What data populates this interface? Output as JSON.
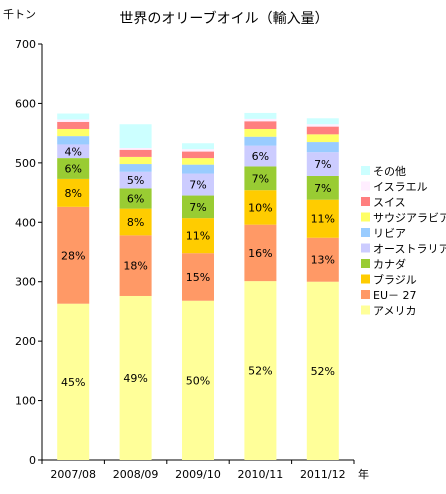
{
  "chart_data": {
    "type": "bar",
    "stacked": true,
    "title": "世界のオリーブオイル（輸入量）",
    "ylabel": "千トン",
    "xlabel": "年",
    "ylim": [
      0,
      700
    ],
    "yticks": [
      "0",
      "100",
      "200",
      "300",
      "400",
      "500",
      "600",
      "700"
    ],
    "grid": false,
    "legend_position": "right",
    "categories": [
      "2007/08",
      "2008/09",
      "2009/10",
      "2010/11",
      "2011/12"
    ],
    "series": [
      {
        "name": "アメリカ",
        "color": "#ffff99",
        "values": [
          263,
          276,
          268,
          301,
          300
        ],
        "labels": [
          "45%",
          "49%",
          "50%",
          "52%",
          "52%"
        ]
      },
      {
        "name": "EU－ 27",
        "color": "#ff9966",
        "values": [
          163,
          102,
          80,
          95,
          74
        ],
        "labels": [
          "28%",
          "18%",
          "15%",
          "16%",
          "13%"
        ]
      },
      {
        "name": "ブラジル",
        "color": "#ffcc00",
        "values": [
          47,
          45,
          59,
          58,
          64
        ],
        "labels": [
          "8%",
          "8%",
          "11%",
          "10%",
          "11%"
        ]
      },
      {
        "name": "カナダ",
        "color": "#99cc33",
        "values": [
          35,
          34,
          38,
          40,
          40
        ],
        "labels": [
          "6%",
          "6%",
          "7%",
          "7%",
          "7%"
        ]
      },
      {
        "name": "オーストラリア",
        "color": "#ccccff",
        "values": [
          23,
          28,
          37,
          35,
          40
        ],
        "labels": [
          "4%",
          "5%",
          "7%",
          "6%",
          "7%"
        ]
      },
      {
        "name": "リビア",
        "color": "#99ccff",
        "values": [
          14,
          13,
          15,
          15,
          17
        ],
        "labels": [
          "",
          "",
          "",
          "",
          ""
        ]
      },
      {
        "name": "サウジアラビア",
        "color": "#ffff66",
        "values": [
          12,
          12,
          11,
          13,
          13
        ],
        "labels": [
          "",
          "",
          "",
          "",
          ""
        ]
      },
      {
        "name": "スイス",
        "color": "#ff7f7f",
        "values": [
          12,
          12,
          11,
          13,
          13
        ],
        "labels": [
          "",
          "",
          "",
          "",
          ""
        ]
      },
      {
        "name": "イスラエル",
        "color": "#ffeeff",
        "values": [
          4,
          3,
          4,
          4,
          4
        ],
        "labels": [
          "",
          "",
          "",
          "",
          ""
        ]
      },
      {
        "name": "その他",
        "color": "#ccffff",
        "values": [
          10,
          40,
          10,
          10,
          10
        ],
        "labels": [
          "",
          "",
          "",
          "",
          ""
        ]
      }
    ]
  }
}
